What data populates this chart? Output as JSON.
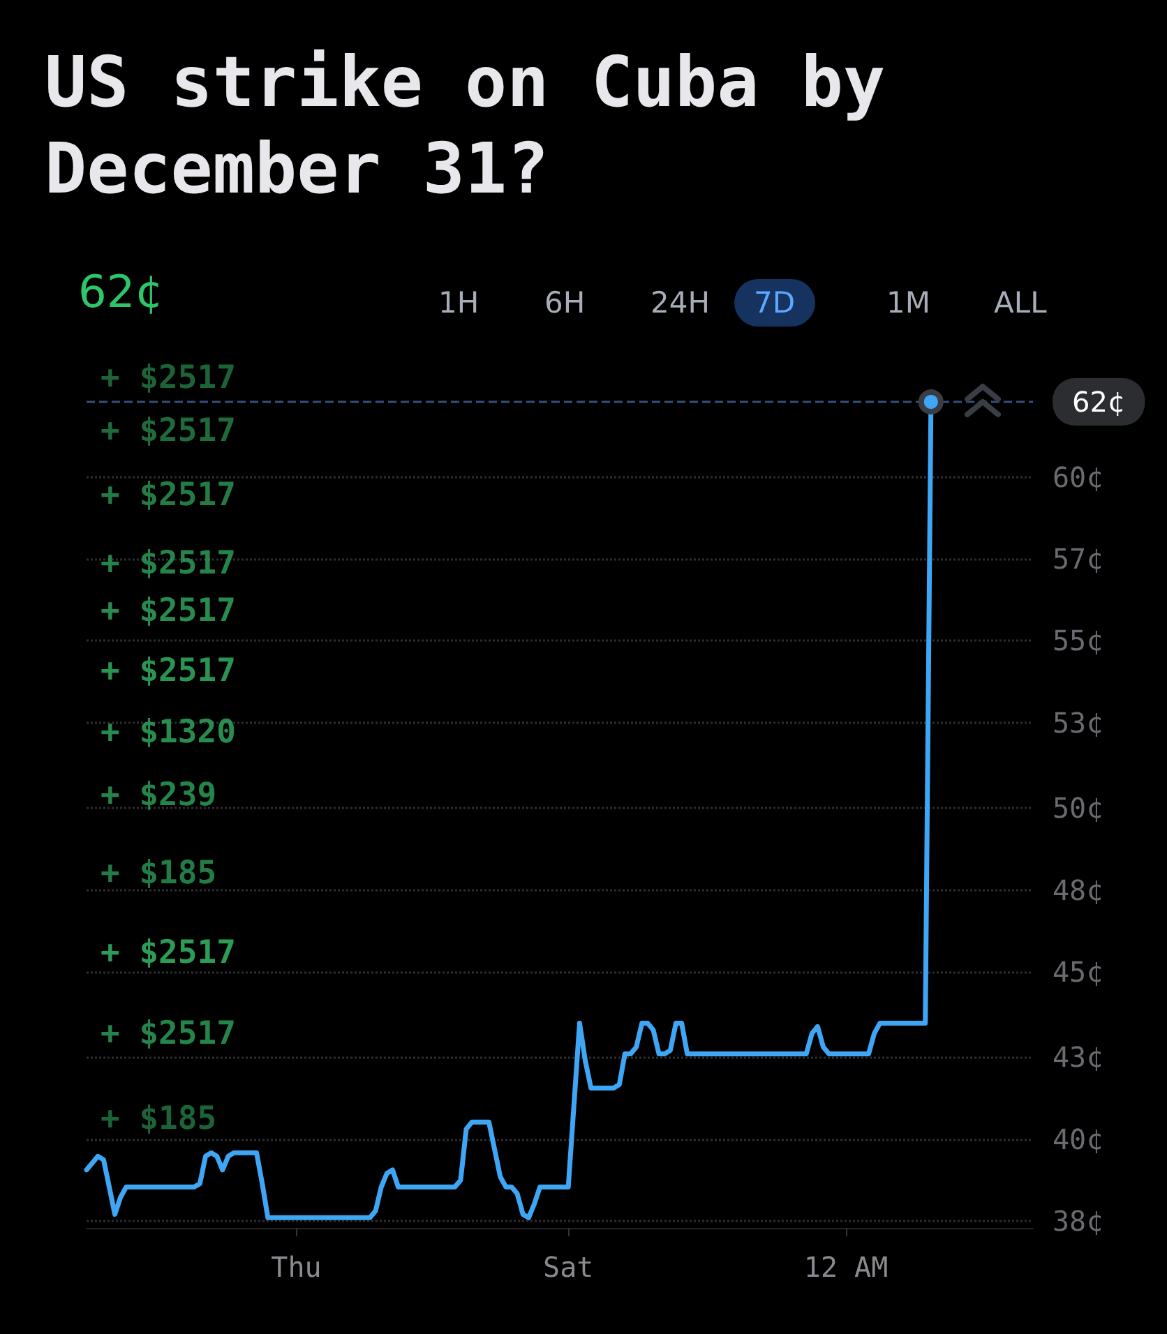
{
  "chart_data": {
    "type": "line",
    "title": "US strike on Cuba by December 31?",
    "categories": [
      null,
      null,
      null,
      null,
      null,
      null,
      null,
      null,
      null,
      null,
      null,
      null,
      null,
      null,
      null,
      null,
      null,
      null,
      null,
      null,
      null,
      null,
      null,
      null,
      null,
      null,
      null,
      null,
      null,
      null,
      null,
      null,
      null,
      null,
      null,
      null,
      null,
      "Thu",
      null,
      null,
      null,
      null,
      null,
      null,
      null,
      null,
      null,
      null,
      null,
      null,
      null,
      null,
      null,
      null,
      null,
      null,
      null,
      null,
      null,
      null,
      null,
      null,
      null,
      null,
      null,
      null,
      null,
      null,
      null,
      null,
      null,
      null,
      null,
      null,
      null,
      null,
      null,
      null,
      null,
      null,
      null,
      null,
      null,
      null,
      null,
      "Sat",
      null,
      null,
      null,
      null,
      null,
      null,
      null,
      null,
      null,
      null,
      null,
      null,
      null,
      null,
      null,
      null,
      null,
      null,
      null,
      null,
      null,
      null,
      null,
      null,
      null,
      null,
      null,
      null,
      null,
      null,
      null,
      null,
      null,
      null,
      null,
      null,
      null,
      null,
      null,
      null,
      null,
      null,
      null,
      null,
      null,
      null,
      null,
      null,
      "12 AM",
      null,
      null,
      null,
      null,
      null,
      null,
      null,
      null,
      null,
      null,
      null,
      null,
      null,
      null,
      null,
      null,
      null,
      null,
      null,
      null,
      null,
      null,
      null,
      null,
      null,
      null,
      null,
      null,
      null,
      null,
      null,
      null,
      null
    ],
    "series": [
      {
        "color": "#3ea6f5",
        "values": [
          39.5,
          39.7,
          39.9,
          39.8,
          39.0,
          38.2,
          38.7,
          39,
          39,
          39,
          39,
          39,
          39,
          39,
          39,
          39,
          39,
          39,
          39,
          39,
          39.1,
          39.9,
          40,
          39.9,
          39.5,
          39.9,
          40,
          40,
          40,
          40,
          40,
          39.1,
          38.1,
          38.1,
          38.1,
          38.1,
          38.1,
          38.1,
          38.1,
          38.1,
          38.1,
          38.1,
          38.1,
          38.1,
          38.1,
          38.1,
          38.1,
          38.1,
          38.1,
          38.1,
          38.1,
          38.3,
          39,
          39.4,
          39.5,
          39.0,
          39,
          39,
          39,
          39,
          39,
          39,
          39,
          39,
          39,
          39,
          39.2,
          40.7,
          40.9,
          40.9,
          40.9,
          40.9,
          40.1,
          39.3,
          39,
          39,
          38.8,
          38.2,
          38.1,
          38.5,
          39,
          39,
          39,
          39,
          39,
          39,
          41.4,
          43.8,
          42.7,
          41.9,
          41.9,
          41.9,
          41.9,
          41.9,
          42.0,
          42.9,
          42.9,
          43.1,
          43.8,
          43.8,
          43.6,
          42.9,
          42.9,
          43.0,
          43.8,
          43.8,
          42.9,
          42.9,
          42.9,
          42.9,
          42.9,
          42.9,
          42.9,
          42.9,
          42.9,
          42.9,
          42.9,
          42.9,
          42.9,
          42.9,
          42.9,
          42.9,
          42.9,
          42.9,
          42.9,
          42.9,
          42.9,
          42.9,
          43.5,
          43.7,
          43.1,
          42.9,
          42.9,
          42.9,
          42.9,
          42.9,
          42.9,
          42.9,
          42.9,
          43.5,
          43.8,
          43.8,
          43.8,
          43.8,
          43.8,
          43.8,
          43.8,
          43.8,
          43.8,
          62,
          null,
          null,
          null,
          null,
          null,
          null,
          null,
          null,
          null,
          null,
          null,
          null,
          null,
          null,
          null,
          null,
          null,
          null
        ]
      }
    ],
    "ylim": [
      37.8,
      62
    ],
    "yticks": [
      {
        "value": 38,
        "label": "38¢"
      },
      {
        "value": 40.4,
        "label": "40¢"
      },
      {
        "value": 42.8,
        "label": "43¢"
      },
      {
        "value": 45.3,
        "label": "45¢"
      },
      {
        "value": 47.7,
        "label": "48¢"
      },
      {
        "value": 50.1,
        "label": "50¢"
      },
      {
        "value": 52.6,
        "label": "53¢"
      },
      {
        "value": 55,
        "label": "55¢"
      },
      {
        "value": 57.4,
        "label": "57¢"
      },
      {
        "value": 59.8,
        "label": "60¢"
      }
    ],
    "grid": "y",
    "line_style": "solid",
    "ref_lines": [
      {
        "axis": "y",
        "value": 62,
        "label": "62¢",
        "color": "#34507a",
        "line_style": "dashed"
      }
    ],
    "annotations": [
      "62¢",
      "1H",
      "6H",
      "24H",
      "7D",
      "1M",
      "ALL",
      "+ $2517",
      "+ $2517",
      "+ $2517",
      "+ $2517",
      "+ $2517",
      "+ $2517",
      "+ $1320",
      "+ $239",
      "+ $185",
      "+ $2517",
      "+ $2517",
      "+ $185"
    ]
  }
}
